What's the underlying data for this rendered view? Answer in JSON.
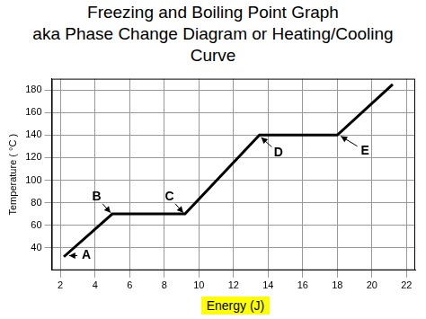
{
  "chart_data": {
    "type": "line",
    "title": [
      "Freezing and Boiling Point Graph",
      "aka Phase Change Diagram or Heating/Cooling",
      "Curve"
    ],
    "x_label": "Energy (J)",
    "y_label": "Temperature ( °C )",
    "x": [
      2.2,
      5,
      9.2,
      13.5,
      18,
      21.2
    ],
    "values": [
      32,
      70,
      70,
      140,
      140,
      185
    ],
    "color": "#000000",
    "xlim": [
      1.5,
      22.5
    ],
    "xticks": [
      2,
      4,
      6,
      8,
      10,
      12,
      14,
      16,
      18,
      20,
      22
    ],
    "ylim": [
      20,
      190
    ],
    "yticks": [
      40,
      60,
      80,
      100,
      120,
      140,
      160,
      180
    ],
    "grid": true,
    "annotations": [
      {
        "text": "A",
        "x": 3.5,
        "y": 33,
        "target": [
          2.5,
          33
        ]
      },
      {
        "text": "B",
        "x": 4.1,
        "y": 85,
        "target": [
          4.9,
          71
        ]
      },
      {
        "text": "C",
        "x": 8.3,
        "y": 85,
        "target": [
          9.1,
          71
        ]
      },
      {
        "text": "D",
        "x": 14.6,
        "y": 124,
        "target": [
          13.6,
          138
        ]
      },
      {
        "text": "E",
        "x": 19.6,
        "y": 126,
        "target": [
          18.2,
          139
        ]
      }
    ]
  }
}
